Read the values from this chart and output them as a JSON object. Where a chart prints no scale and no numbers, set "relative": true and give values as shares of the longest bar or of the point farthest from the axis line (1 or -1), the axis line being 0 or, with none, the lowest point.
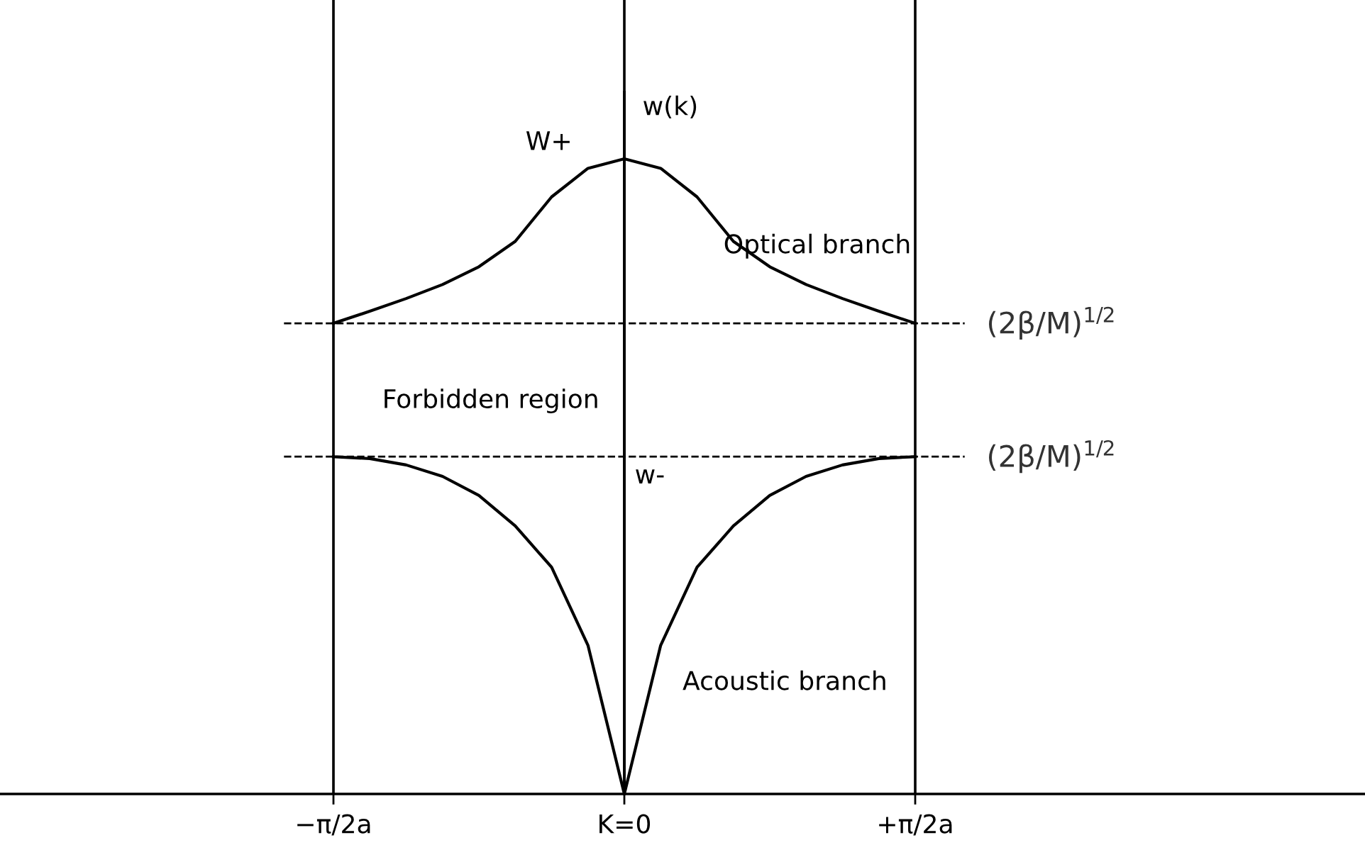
{
  "chart_data": {
    "type": "line",
    "relative": true,
    "ylabel": "w(k)",
    "categories": [
      "−π/2a",
      null,
      null,
      null,
      null,
      null,
      null,
      null,
      "K=0",
      null,
      null,
      null,
      null,
      null,
      null,
      null,
      "+π/2a"
    ],
    "series": [
      {
        "color": "#000000",
        "values": [
          0.741,
          0.76,
          0.78,
          0.802,
          0.83,
          0.87,
          0.94,
          0.985,
          1.0,
          0.985,
          0.94,
          0.87,
          0.83,
          0.802,
          0.78,
          0.76,
          0.741
        ]
      },
      {
        "color": "#000000",
        "values": [
          0.531,
          0.528,
          0.518,
          0.5,
          0.47,
          0.422,
          0.357,
          0.234,
          0,
          0.234,
          0.357,
          0.422,
          0.47,
          0.5,
          0.518,
          0.528,
          0.531
        ]
      }
    ],
    "ref_lines": [
      {
        "axis": "y",
        "value": 0.741,
        "label": "(2β/M)$^{1/2}$",
        "line_style": "dashed",
        "color": "#000000"
      },
      {
        "axis": "y",
        "value": 0.531,
        "label": "(2β/M)$^{1/2}$",
        "line_style": "dashed",
        "color": "#000000"
      }
    ],
    "annotations": [
      "W+",
      "Optical branch",
      "Forbidden region",
      "w-",
      "Acoustic branch"
    ],
    "grid": "x",
    "legend": false,
    "marker": "none",
    "line_style": "solid"
  }
}
